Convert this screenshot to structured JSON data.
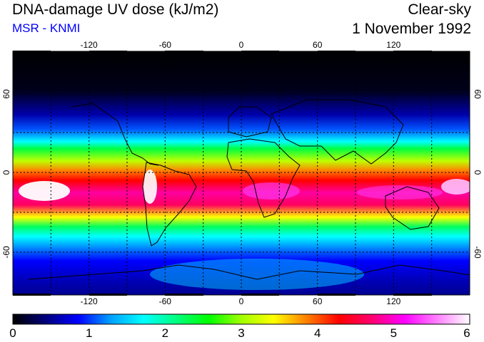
{
  "header": {
    "title": "DNA-damage UV dose (kJ/m2)",
    "subtitle": "MSR - KNMI",
    "subtitle_color": "#0000ff",
    "condition": "Clear-sky",
    "date": "1 November 1992"
  },
  "map": {
    "projection": "equirectangular",
    "lon_ticks": [
      "-120",
      "-60",
      "0",
      "60",
      "120"
    ],
    "lat_ticks": [
      "60",
      "0",
      "-60"
    ],
    "grid": "dotted",
    "coastlines": true
  },
  "colorbar": {
    "labels": [
      "0",
      "1",
      "2",
      "3",
      "4",
      "5",
      "6"
    ],
    "min": 0,
    "max": 6,
    "colors": [
      "#000000",
      "#00007a",
      "#0000ff",
      "#00a0ff",
      "#00ffff",
      "#00ff80",
      "#00ff00",
      "#a0ff00",
      "#ffff00",
      "#ff8000",
      "#ff0000",
      "#ff0070",
      "#ff00ff",
      "#ff80ff",
      "#ffffff"
    ]
  }
}
